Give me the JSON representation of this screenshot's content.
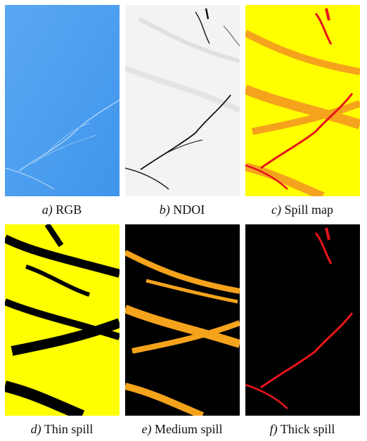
{
  "panels": [
    {
      "letter": "a",
      "label": "RGB"
    },
    {
      "letter": "b",
      "label": "NDOI"
    },
    {
      "letter": "c",
      "label": "Spill map"
    },
    {
      "letter": "d",
      "label": "Thin spill"
    },
    {
      "letter": "e",
      "label": "Medium spill"
    },
    {
      "letter": "f",
      "label": "Thick spill"
    }
  ],
  "colors": {
    "rgb_water": "#4c9ff0",
    "ndoi_bg": "#f2f2f2",
    "thin": "#ffff00",
    "medium": "#f5a31c",
    "thick": "#e8141c",
    "background": "#000000"
  }
}
